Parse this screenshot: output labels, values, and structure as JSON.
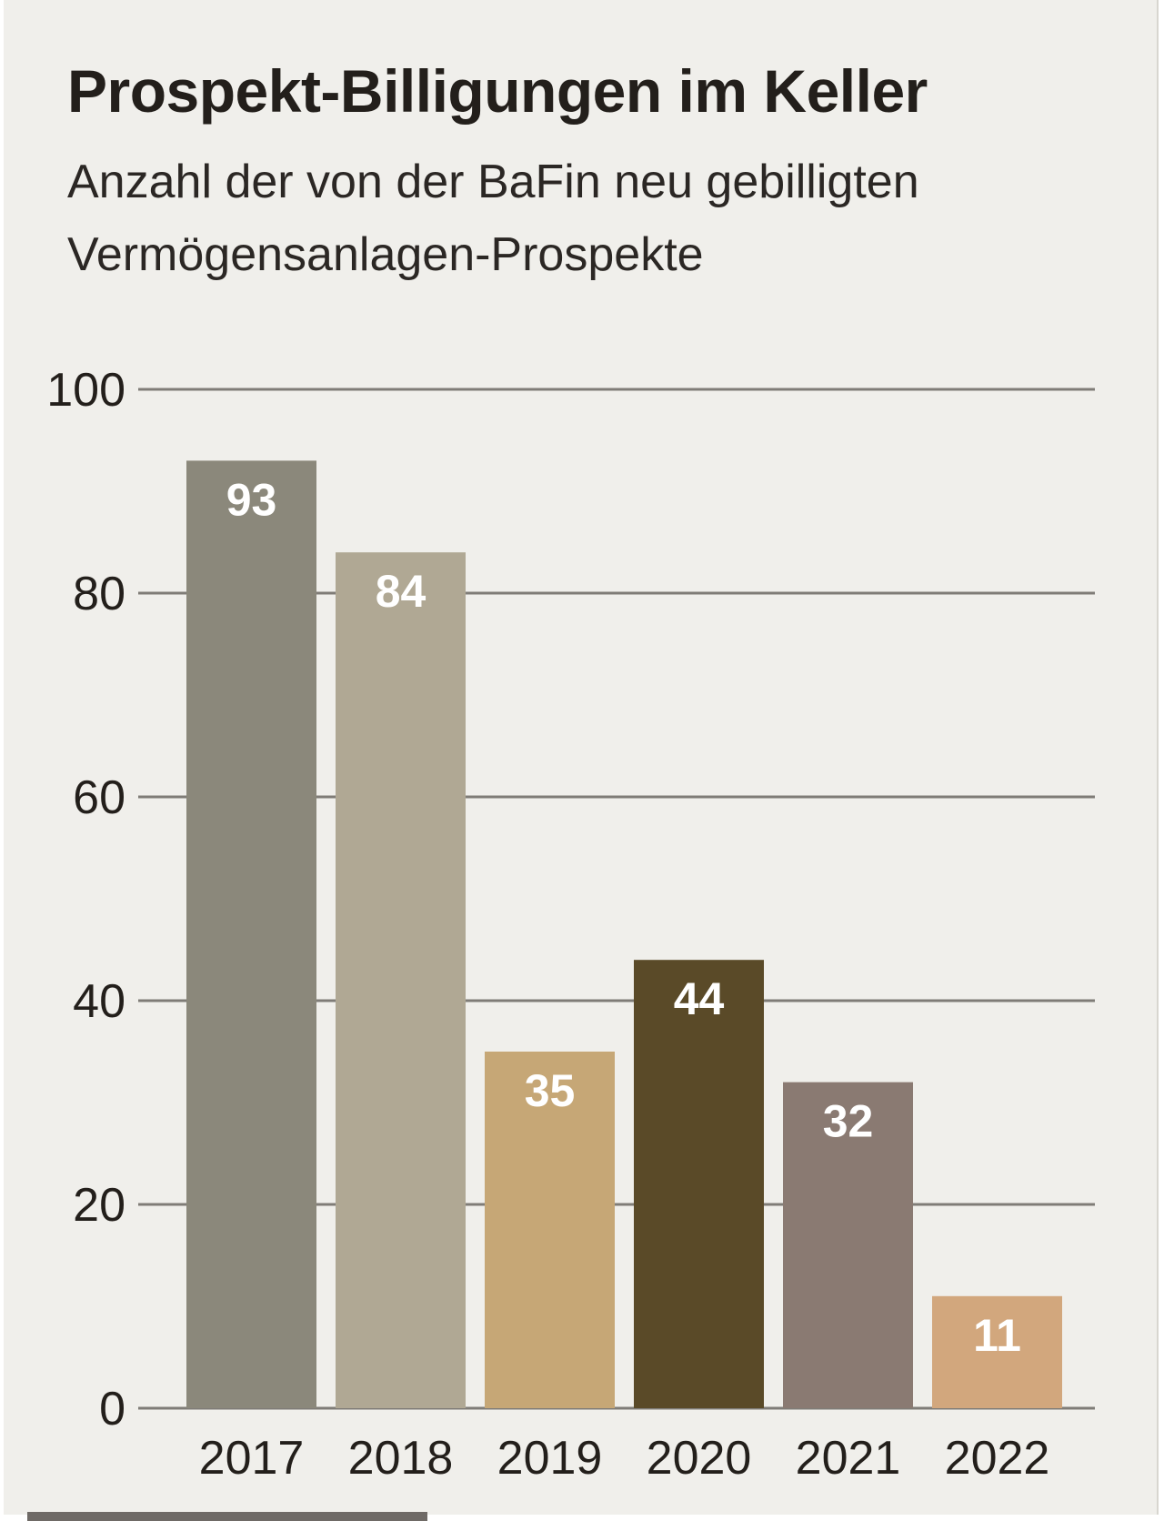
{
  "chart_data": {
    "type": "bar",
    "title": "Prospekt-Billigungen im Keller",
    "subtitle": "Anzahl der von der BaFin neu gebilligten Vermögensanlagen-Prospekte",
    "categories": [
      "2017",
      "2018",
      "2019",
      "2020",
      "2021",
      "2022"
    ],
    "values": [
      93,
      84,
      35,
      44,
      32,
      11
    ],
    "value_labels": [
      "93",
      "84",
      "35",
      "44",
      "32",
      "11"
    ],
    "bar_colors": [
      "#8b887b",
      "#b0a894",
      "#c6a776",
      "#5a4a28",
      "#8a7a72",
      "#d2a77d"
    ],
    "ylim": [
      0,
      100
    ],
    "yticks": [
      0,
      20,
      40,
      60,
      80,
      100
    ],
    "ytick_labels": [
      "0",
      "20",
      "40",
      "60",
      "80",
      "100"
    ],
    "xlabel": "",
    "ylabel": "",
    "grid": true,
    "legend": "none",
    "colors": {
      "background": "#f0efeb",
      "grid": "#7f7c77",
      "text": "#231f1b",
      "value_label": "#ffffff"
    }
  }
}
